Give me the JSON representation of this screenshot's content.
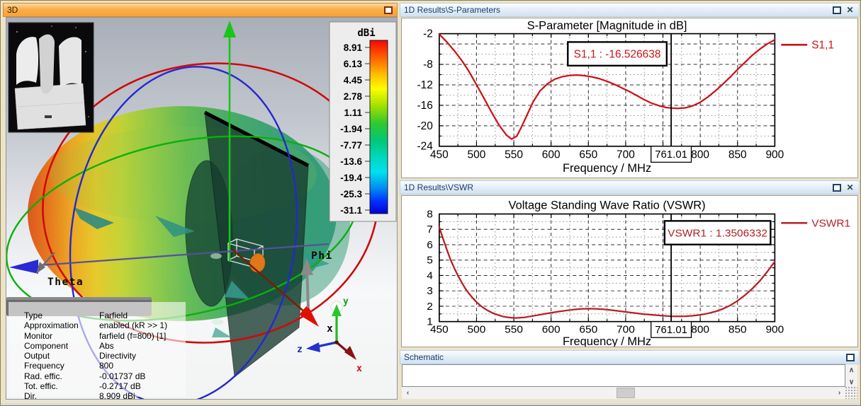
{
  "window": {
    "panel_3d_title": "3D",
    "sparam_panel_title": "1D Results\\S-Parameters",
    "vswr_panel_title": "1D Results\\VSWR",
    "schematic_panel_title": "Schematic",
    "close_glyph": "✕"
  },
  "viewport3d": {
    "axis_labels": {
      "theta": "Theta",
      "phi": "Phi",
      "x": "x"
    },
    "triad": {
      "x": "x",
      "y": "y",
      "z": "z"
    },
    "colorbar": {
      "title": "dBi",
      "unit_labels": [
        "8.91",
        "6.13",
        "4.45",
        "2.78",
        "1.11",
        "-1.94",
        "-7.77",
        "-13.6",
        "-19.4",
        "-25.3",
        "-31.1"
      ]
    },
    "info": {
      "rows": [
        [
          "Type",
          "Farfield"
        ],
        [
          "Approximation",
          "enabled (kR >> 1)"
        ],
        [
          "Monitor",
          "farfield (f=800) [1]"
        ],
        [
          "Component",
          "Abs"
        ],
        [
          "Output",
          "Directivity"
        ],
        [
          "Frequency",
          "800"
        ],
        [
          "Rad. effic.",
          "-0.01737 dB"
        ],
        [
          "Tot. effic.",
          "-0.2717 dB"
        ],
        [
          "Dir.",
          "8.909 dBi"
        ]
      ]
    }
  },
  "chart_data": [
    {
      "type": "line",
      "title": "S-Parameter [Magnitude in dB]",
      "xlabel": "Frequency / MHz",
      "xlim": [
        450,
        900
      ],
      "ylim": [
        -24,
        -2
      ],
      "grid": true,
      "legend_position": "right",
      "x_ticks": [
        450,
        500,
        550,
        600,
        650,
        700,
        800,
        850,
        900
      ],
      "y_ticks": [
        -2,
        -8,
        -12,
        -16,
        -20,
        -24
      ],
      "x_grid_major": [
        500,
        550,
        600,
        650,
        700,
        750,
        800,
        850
      ],
      "x_grid_minor": [
        475,
        525,
        575,
        625,
        675,
        725,
        775,
        825,
        875
      ],
      "y_grid_major": [
        -4,
        -8,
        -12,
        -16,
        -20
      ],
      "y_grid_minor": [
        -6,
        -10,
        -14,
        -18,
        -22
      ],
      "marker": {
        "x": 761.01,
        "x_label": "761.01",
        "annotation": "S1,1 : -16.526638",
        "value": -16.526638
      },
      "series": [
        {
          "name": "S1,1",
          "color": "#cc1418",
          "x": [
            450,
            460,
            470,
            480,
            490,
            500,
            510,
            520,
            530,
            540,
            547,
            554,
            560,
            568,
            576,
            585,
            595,
            605,
            615,
            625,
            635,
            645,
            655,
            665,
            675,
            685,
            695,
            705,
            715,
            725,
            735,
            745,
            755,
            761,
            770,
            780,
            790,
            800,
            810,
            820,
            830,
            840,
            850,
            860,
            870,
            880,
            890,
            900
          ],
          "y": [
            -2.1,
            -3.6,
            -5.3,
            -7.2,
            -9.4,
            -12.0,
            -14.6,
            -17.3,
            -19.8,
            -21.8,
            -22.6,
            -22.0,
            -20.3,
            -17.8,
            -15.3,
            -13.2,
            -11.8,
            -10.9,
            -10.4,
            -10.15,
            -10.1,
            -10.2,
            -10.45,
            -10.8,
            -11.3,
            -11.9,
            -12.6,
            -13.3,
            -14.1,
            -14.9,
            -15.6,
            -16.1,
            -16.45,
            -16.53,
            -16.6,
            -16.5,
            -16.1,
            -15.4,
            -14.4,
            -13.2,
            -11.9,
            -10.5,
            -9.0,
            -7.6,
            -6.2,
            -5.0,
            -4.0,
            -3.2
          ]
        }
      ]
    },
    {
      "type": "line",
      "title": "Voltage Standing Wave Ratio (VSWR)",
      "xlabel": "Frequency / MHz",
      "xlim": [
        450,
        900
      ],
      "ylim": [
        1,
        8
      ],
      "grid": true,
      "legend_position": "right",
      "x_ticks": [
        450,
        500,
        550,
        600,
        650,
        700,
        800,
        850,
        900
      ],
      "y_ticks": [
        8,
        7,
        6,
        5,
        4,
        3,
        2,
        1
      ],
      "x_grid_major": [
        500,
        550,
        600,
        650,
        700,
        750,
        800,
        850
      ],
      "x_grid_minor": [
        475,
        525,
        575,
        625,
        675,
        725,
        775,
        825,
        875
      ],
      "y_grid_major": [
        2,
        3,
        4,
        5,
        6,
        7
      ],
      "y_grid_minor": [
        1.5,
        2.5,
        3.5,
        4.5,
        5.5,
        6.5,
        7.5
      ],
      "marker": {
        "x": 761.01,
        "x_label": "761.01",
        "annotation": "VSWR1 : 1.3506332",
        "value": 1.3506332
      },
      "series": [
        {
          "name": "VSWR1",
          "color": "#b52025",
          "x": [
            450,
            455,
            460,
            465,
            470,
            475,
            480,
            485,
            490,
            495,
            500,
            505,
            510,
            515,
            520,
            525,
            530,
            535,
            540,
            545,
            550,
            555,
            560,
            565,
            570,
            575,
            580,
            590,
            600,
            610,
            620,
            630,
            640,
            650,
            660,
            670,
            680,
            690,
            700,
            710,
            720,
            730,
            740,
            750,
            761,
            770,
            780,
            790,
            800,
            810,
            820,
            830,
            840,
            850,
            860,
            870,
            880,
            890,
            900
          ],
          "y": [
            7.15,
            6.4,
            5.7,
            5.05,
            4.5,
            4.0,
            3.55,
            3.15,
            2.82,
            2.52,
            2.27,
            2.05,
            1.87,
            1.72,
            1.59,
            1.49,
            1.41,
            1.34,
            1.29,
            1.26,
            1.24,
            1.24,
            1.26,
            1.28,
            1.32,
            1.36,
            1.4,
            1.49,
            1.57,
            1.65,
            1.72,
            1.78,
            1.82,
            1.84,
            1.83,
            1.8,
            1.75,
            1.69,
            1.63,
            1.57,
            1.51,
            1.46,
            1.42,
            1.38,
            1.35,
            1.34,
            1.35,
            1.38,
            1.44,
            1.53,
            1.65,
            1.82,
            2.05,
            2.35,
            2.72,
            3.15,
            3.65,
            4.25,
            4.9
          ]
        }
      ]
    }
  ],
  "schematic": {
    "up_glyph": "∧",
    "down_glyph": "∨",
    "left_glyph": "‹",
    "right_glyph": "›"
  }
}
